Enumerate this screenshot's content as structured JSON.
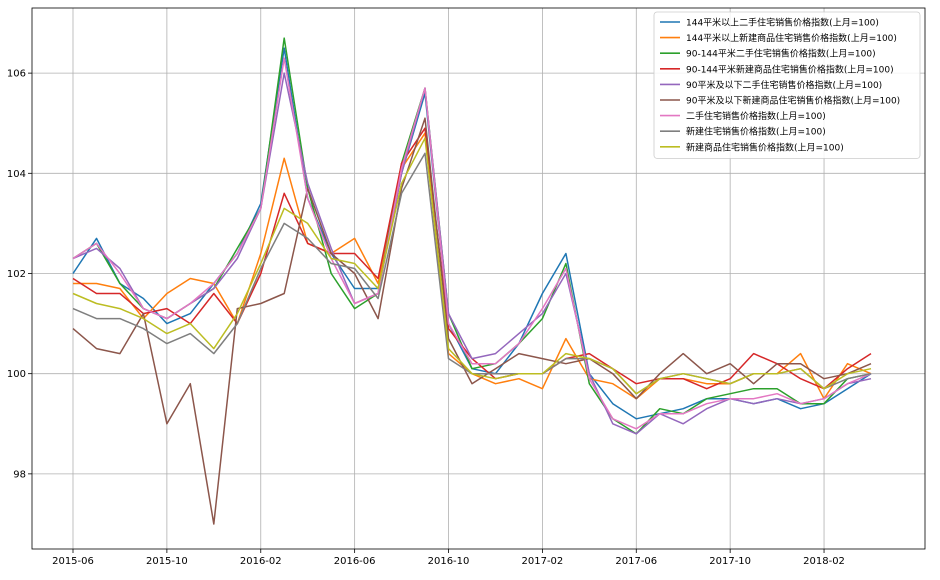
{
  "chart_data": {
    "type": "line",
    "title": "",
    "xlabel": "",
    "ylabel": "",
    "grid": true,
    "legend_position": "top-right",
    "ylim": [
      96.5,
      107.3
    ],
    "y_ticks": [
      98,
      100,
      102,
      104,
      106
    ],
    "x": [
      "2015-06",
      "2015-07",
      "2015-08",
      "2015-09",
      "2015-10",
      "2015-11",
      "2015-12",
      "2016-01",
      "2016-02",
      "2016-03",
      "2016-04",
      "2016-05",
      "2016-06",
      "2016-07",
      "2016-08",
      "2016-09",
      "2016-10",
      "2016-11",
      "2016-12",
      "2017-01",
      "2017-02",
      "2017-03",
      "2017-04",
      "2017-05",
      "2017-06",
      "2017-07",
      "2017-08",
      "2017-09",
      "2017-10",
      "2017-11",
      "2017-12",
      "2018-01",
      "2018-02",
      "2018-03",
      "2018-04"
    ],
    "x_ticks": [
      "2015-06",
      "2015-10",
      "2016-02",
      "2016-06",
      "2016-10",
      "2017-02",
      "2017-06",
      "2017-10",
      "2018-02"
    ],
    "series": [
      {
        "name": "144平米以上二手住宅销售价格指数(上月=100)",
        "color": "#1f77b4",
        "values": [
          102.0,
          102.7,
          101.8,
          101.5,
          101.0,
          101.2,
          101.8,
          102.4,
          103.4,
          106.5,
          103.5,
          102.4,
          101.7,
          101.7,
          104.0,
          105.6,
          101.0,
          100.1,
          100.0,
          100.6,
          101.6,
          102.4,
          100.0,
          99.4,
          99.1,
          99.2,
          99.3,
          99.5,
          99.5,
          99.4,
          99.5,
          99.3,
          99.4,
          99.7,
          100.0
        ]
      },
      {
        "name": "144平米以上新建商品住宅销售价格指数(上月=100)",
        "color": "#ff7f0e",
        "values": [
          101.8,
          101.8,
          101.7,
          101.1,
          101.6,
          101.9,
          101.8,
          101.0,
          102.4,
          104.3,
          102.6,
          102.4,
          102.7,
          101.8,
          104.1,
          104.8,
          100.4,
          100.0,
          99.8,
          99.9,
          99.7,
          100.7,
          99.9,
          99.8,
          99.5,
          99.9,
          99.9,
          99.8,
          99.8,
          100.0,
          100.0,
          100.4,
          99.5,
          100.2,
          100.0
        ]
      },
      {
        "name": "90-144平米二手住宅销售价格指数(上月=100)",
        "color": "#2ca02c",
        "values": [
          102.3,
          102.6,
          101.8,
          101.3,
          101.1,
          101.4,
          101.7,
          102.5,
          103.3,
          106.7,
          103.7,
          102.0,
          101.3,
          101.6,
          104.2,
          105.7,
          101.2,
          100.1,
          100.2,
          100.6,
          101.1,
          102.2,
          99.8,
          99.1,
          98.8,
          99.3,
          99.2,
          99.5,
          99.6,
          99.7,
          99.7,
          99.4,
          99.4,
          99.9,
          100.0
        ]
      },
      {
        "name": "90-144平米新建商品住宅销售价格指数(上月=100)",
        "color": "#d62728",
        "values": [
          101.9,
          101.6,
          101.6,
          101.2,
          101.3,
          101.0,
          101.6,
          101.0,
          102.0,
          103.6,
          102.6,
          102.4,
          102.4,
          101.9,
          104.2,
          104.9,
          100.9,
          100.3,
          99.9,
          100.0,
          100.0,
          100.3,
          100.4,
          100.1,
          99.8,
          99.9,
          99.9,
          99.7,
          99.9,
          100.4,
          100.2,
          99.9,
          99.7,
          100.1,
          100.4
        ]
      },
      {
        "name": "90平米及以下二手住宅销售价格指数(上月=100)",
        "color": "#9467bd",
        "values": [
          102.3,
          102.5,
          102.1,
          101.3,
          101.1,
          101.4,
          101.7,
          102.3,
          103.3,
          106.0,
          103.8,
          102.5,
          101.4,
          101.6,
          104.0,
          105.7,
          101.2,
          100.3,
          100.4,
          100.8,
          101.2,
          102.0,
          100.0,
          99.0,
          98.8,
          99.2,
          99.0,
          99.3,
          99.5,
          99.4,
          99.5,
          99.4,
          99.5,
          99.8,
          99.9
        ]
      },
      {
        "name": "90平米及以下新建商品住宅销售价格指数(上月=100)",
        "color": "#8c564b",
        "values": [
          100.9,
          100.5,
          100.4,
          101.2,
          99.0,
          99.8,
          97.0,
          101.3,
          101.4,
          101.6,
          103.7,
          102.4,
          102.0,
          101.1,
          103.7,
          105.1,
          100.7,
          99.8,
          100.1,
          100.4,
          100.3,
          100.2,
          100.3,
          100.0,
          99.5,
          100.0,
          100.4,
          100.0,
          100.2,
          99.8,
          100.2,
          100.2,
          99.9,
          100.0,
          100.2
        ]
      },
      {
        "name": "二手住宅销售价格指数(上月=100)",
        "color": "#e377c2",
        "values": [
          102.3,
          102.6,
          102.0,
          101.3,
          101.1,
          101.4,
          101.8,
          102.4,
          103.3,
          106.3,
          103.5,
          102.3,
          101.4,
          101.6,
          104.1,
          105.7,
          101.0,
          100.2,
          100.2,
          100.6,
          101.3,
          102.1,
          99.9,
          99.1,
          98.9,
          99.2,
          99.2,
          99.4,
          99.5,
          99.5,
          99.6,
          99.4,
          99.5,
          99.8,
          100.0
        ]
      },
      {
        "name": "新建住宅销售价格指数(上月=100)",
        "color": "#7f7f7f",
        "values": [
          101.3,
          101.1,
          101.1,
          100.9,
          100.6,
          100.8,
          100.4,
          101.0,
          102.1,
          103.0,
          102.7,
          102.2,
          102.1,
          101.5,
          103.6,
          104.4,
          100.3,
          100.0,
          100.0,
          100.0,
          100.0,
          100.3,
          100.3,
          100.1,
          99.6,
          99.9,
          100.0,
          99.9,
          99.8,
          100.0,
          100.0,
          100.1,
          99.7,
          99.9,
          100.0
        ]
      },
      {
        "name": "新建商品住宅销售价格指数(上月=100)",
        "color": "#bcbd22",
        "values": [
          101.6,
          101.4,
          101.3,
          101.1,
          100.8,
          101.0,
          100.5,
          101.2,
          102.2,
          103.3,
          103.0,
          102.3,
          102.2,
          101.7,
          103.8,
          104.7,
          100.5,
          100.0,
          99.9,
          100.0,
          100.0,
          100.4,
          100.3,
          100.1,
          99.6,
          99.9,
          100.0,
          99.9,
          99.8,
          100.0,
          100.0,
          100.1,
          99.7,
          100.0,
          100.1
        ]
      }
    ]
  }
}
